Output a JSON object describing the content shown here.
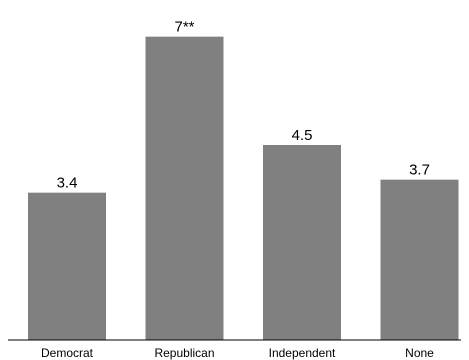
{
  "chart_data": {
    "type": "bar",
    "categories": [
      "Democrat",
      "Republican",
      "Independent",
      "None"
    ],
    "values": [
      3.4,
      7.0,
      4.5,
      3.7
    ],
    "data_labels": [
      "3.4",
      "7**",
      "4.5",
      "3.7"
    ],
    "title": "",
    "xlabel": "",
    "ylabel": "",
    "ylim": [
      0,
      7.5
    ],
    "grid": false,
    "bar_color": "#808080",
    "axis_color": "#000000"
  }
}
